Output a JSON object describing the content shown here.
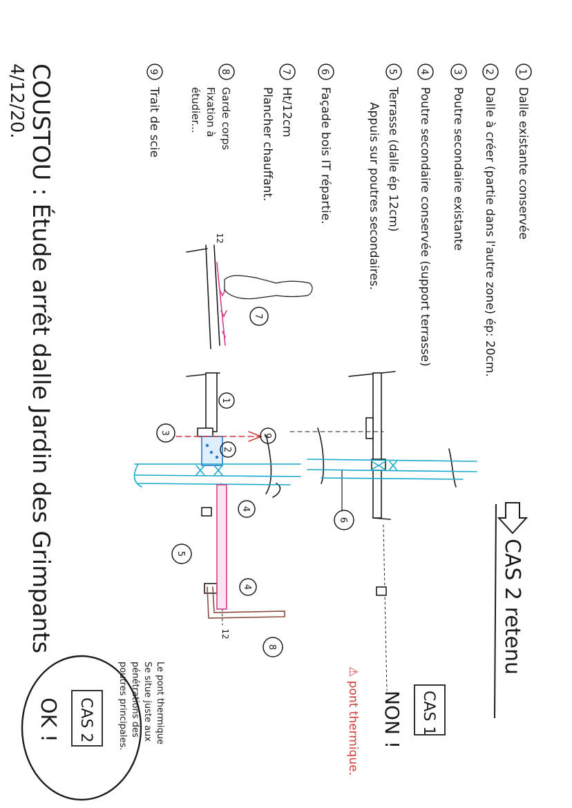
{
  "title": "COUSTOU : Étude arrêt dalle Jardin des Grimpants",
  "date": "4/12/20.",
  "legend": [
    {
      "num": "1",
      "lines": [
        "Dalle existante conservée"
      ]
    },
    {
      "num": "2",
      "lines": [
        "Dalle à créer (partie dans l'autre zone) ép: 20cm."
      ]
    },
    {
      "num": "3",
      "lines": [
        "Poutre secondaire existante"
      ]
    },
    {
      "num": "4",
      "lines": [
        "Poutre secondaire conservée (support terrasse)"
      ]
    },
    {
      "num": "5",
      "lines": [
        "Terrasse (dalle ép 12cm)",
        "Appuis sur poutres secondaires."
      ]
    },
    {
      "num": "6",
      "lines": [
        "Façade bois IT répartie."
      ]
    },
    {
      "num": "7",
      "lines": [
        "Ht/12cm",
        "Plancher chauffant."
      ]
    },
    {
      "num": "8",
      "lines": [
        "Garde corps",
        "Fixation à",
        "étudier..."
      ]
    },
    {
      "num": "9",
      "lines": [
        "Trait de scie"
      ]
    }
  ],
  "cases": {
    "retenu": "CAS 2 retenu",
    "cas1_label": "CAS 1",
    "cas1_verdict": "NON !",
    "cas1_note": "⚠ pont thermique.",
    "cas2_label": "CAS 2",
    "cas2_verdict": "OK !",
    "cas2_note": [
      "Le pont thermique",
      "Se situe juste aux",
      "pénétrations des",
      "poutres principales."
    ]
  },
  "annotations": {
    "level_top": "12",
    "level_bottom": "12",
    "callouts": [
      "1",
      "2",
      "3",
      "4",
      "4",
      "5",
      "6",
      "7",
      "8",
      "9"
    ]
  },
  "colors": {
    "ink": "#1a1a1a",
    "pink": "#d63a8c",
    "cyan": "#17a9c9",
    "blue": "#2a74c9",
    "red": "#d23a3a",
    "brown": "#8a4b3a"
  }
}
